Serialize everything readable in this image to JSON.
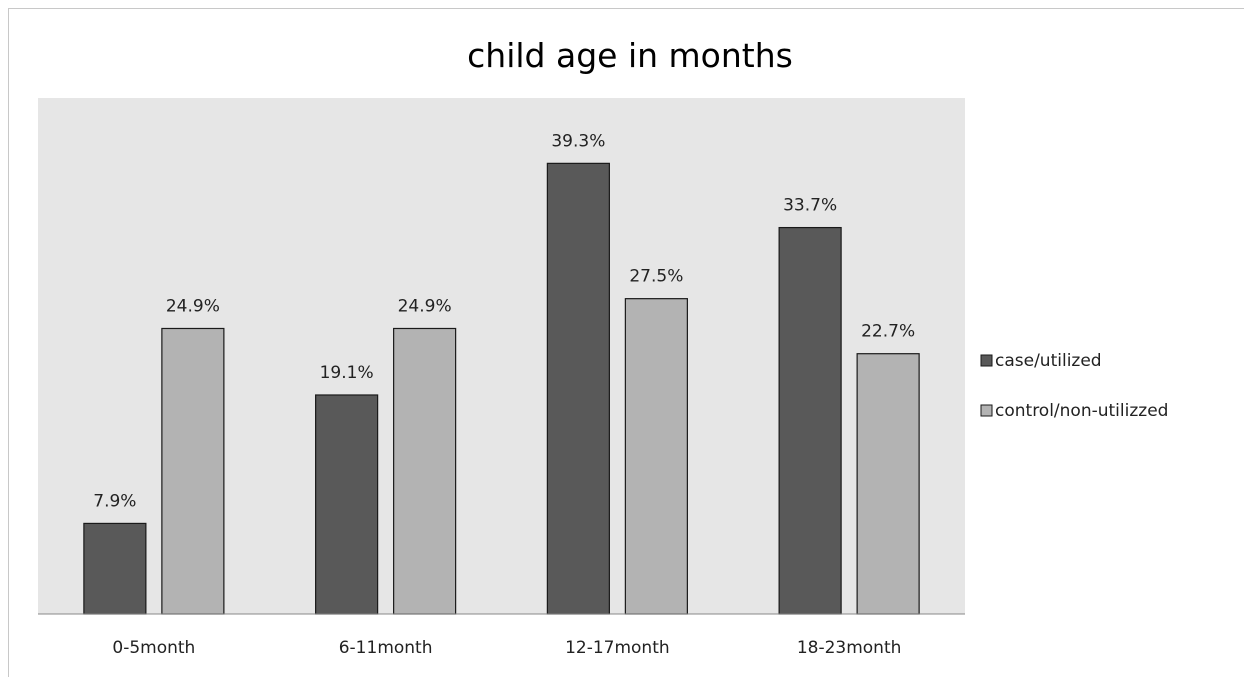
{
  "chart_data": {
    "type": "bar",
    "title": "child age in months",
    "xlabel": "",
    "ylabel": "",
    "categories": [
      "0-5month",
      "6-11month",
      "12-17month",
      "18-23month"
    ],
    "series": [
      {
        "name": "case/utilized",
        "values": [
          7.9,
          19.1,
          39.3,
          33.7
        ],
        "labels": [
          "7.9%",
          "19.1%",
          "39.3%",
          "33.7%"
        ],
        "color": "#595959"
      },
      {
        "name": "control/non-utilizzed",
        "values": [
          24.9,
          24.9,
          27.5,
          22.7
        ],
        "labels": [
          "24.9%",
          "24.9%",
          "27.5%",
          "22.7%"
        ],
        "color": "#b3b3b3"
      }
    ],
    "ylim": [
      0,
      45
    ],
    "grid": false,
    "legend_position": "right",
    "plot_background": "#e6e6e6"
  }
}
